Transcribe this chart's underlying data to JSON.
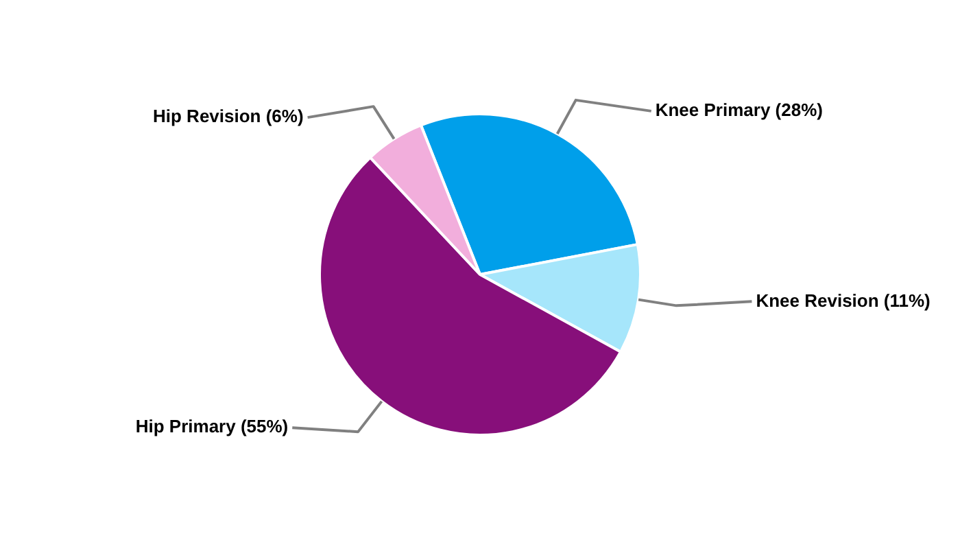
{
  "chart_data": {
    "type": "pie",
    "categories": [
      "Knee Primary (28%)",
      "Knee Revision (11%)",
      "Hip Primary (55%)",
      "Hip Revision (6%)"
    ],
    "values": [
      28,
      11,
      55,
      6
    ],
    "colors": [
      "#009fea",
      "#a6e6fb",
      "#870f7a",
      "#f2aedc"
    ]
  }
}
